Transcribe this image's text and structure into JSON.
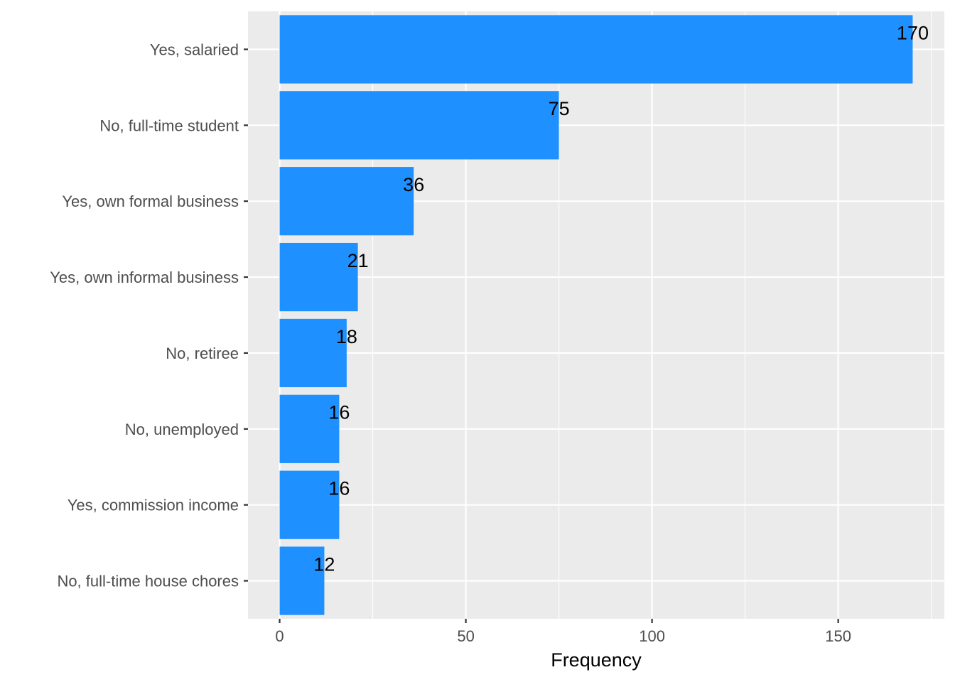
{
  "chart_data": {
    "type": "bar",
    "orientation": "horizontal",
    "categories": [
      "Yes, salaried",
      "No, full-time student",
      "Yes, own formal business",
      "Yes, own informal business",
      "No, retiree",
      "No, unemployed",
      "Yes, commission income",
      "No, full-time house chores"
    ],
    "values": [
      170,
      75,
      36,
      21,
      18,
      16,
      16,
      12
    ],
    "data_labels": [
      "170",
      "75",
      "36",
      "21",
      "18",
      "16",
      "16",
      "12"
    ],
    "xlabel": "Frequency",
    "ylabel": "",
    "title": "",
    "xlim": [
      -8.5,
      178.5
    ],
    "x_ticks": [
      0,
      50,
      100,
      150
    ],
    "x_tick_labels": [
      "0",
      "50",
      "100",
      "150"
    ],
    "grid": true,
    "legend": "none",
    "colors": {
      "bar": "#1E90FF",
      "panel": "#EBEBEB",
      "grid": "#FFFFFF",
      "tick_text": "#4D4D4D",
      "tick_mark": "#333333",
      "label_text": "#000000"
    }
  }
}
